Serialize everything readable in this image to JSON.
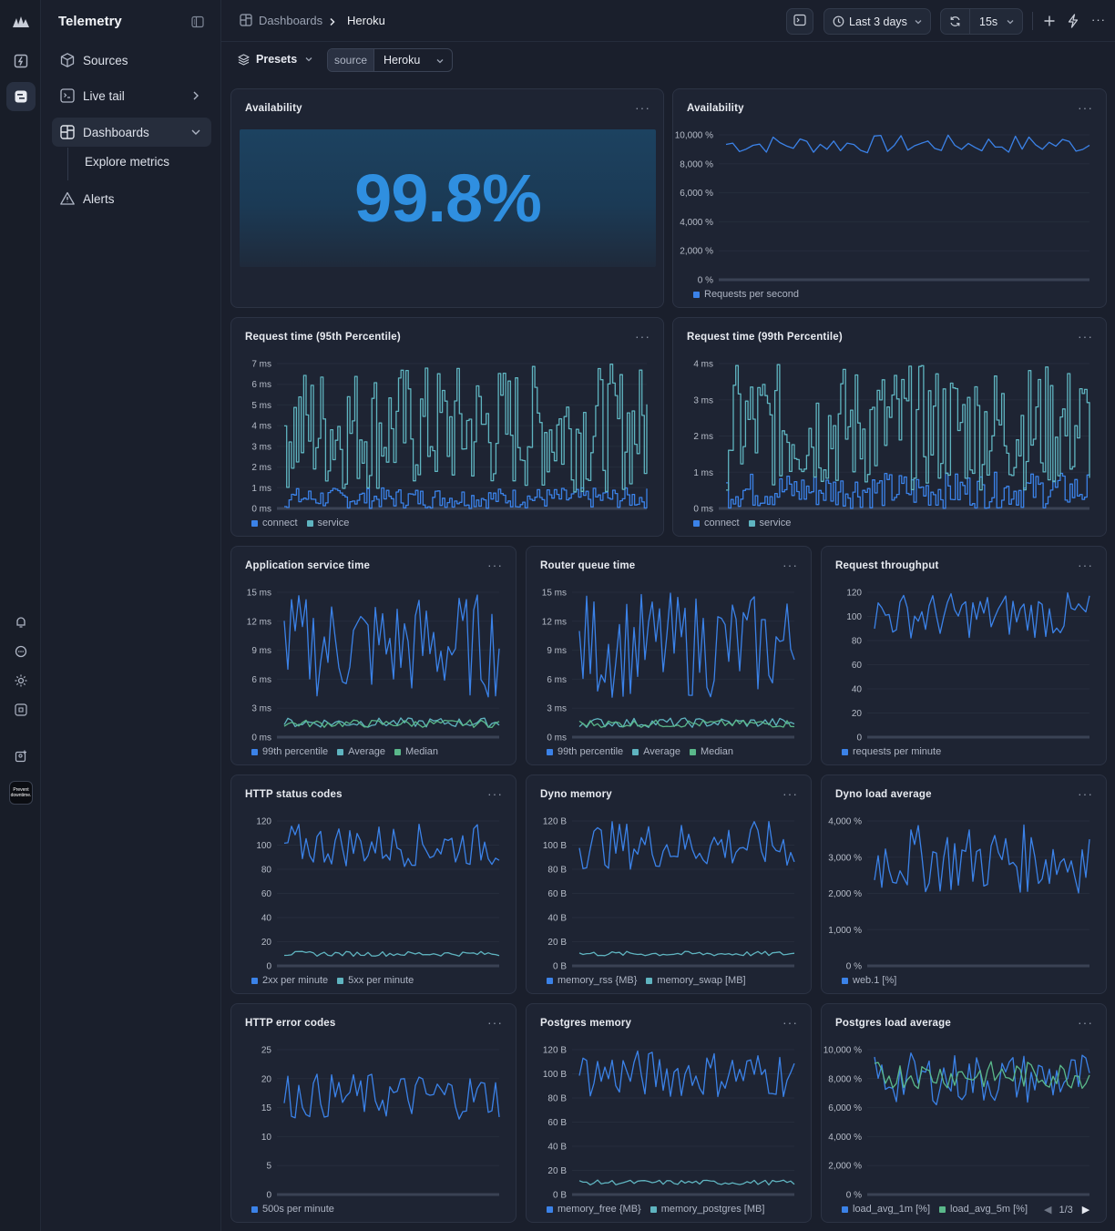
{
  "app": {
    "title": "Telemetry"
  },
  "sidebar": {
    "items": [
      {
        "label": "Sources"
      },
      {
        "label": "Live tail"
      },
      {
        "label": "Dashboards"
      },
      {
        "label": "Alerts"
      }
    ],
    "sub_items": [
      {
        "label": "Explore metrics"
      }
    ]
  },
  "rail": {
    "avatar_text": "Prevent downtime."
  },
  "breadcrumb": {
    "root": "Dashboards",
    "current": "Heroku"
  },
  "toolbar": {
    "time_range": "Last 3 days",
    "refresh_interval": "15s"
  },
  "filters": {
    "presets_label": "Presets",
    "key": "source",
    "value": "Heroku"
  },
  "colors": {
    "blue": "#3b82e8",
    "teal": "#5fb4c0",
    "green": "#5ab88a",
    "bg": "#1a1f2c"
  },
  "panels": [
    {
      "title": "Availability",
      "stat": "99.8%"
    },
    {
      "title": "Availability",
      "legend": [
        "Requests per second"
      ]
    },
    {
      "title": "Request time (95th Percentile)",
      "legend": [
        "connect",
        "service"
      ]
    },
    {
      "title": "Request time (99th Percentile)",
      "legend": [
        "connect",
        "service"
      ]
    },
    {
      "title": "Application service time",
      "legend": [
        "99th percentile",
        "Average",
        "Median"
      ]
    },
    {
      "title": "Router queue time",
      "legend": [
        "99th percentile",
        "Average",
        "Median"
      ]
    },
    {
      "title": "Request throughput",
      "legend": [
        "requests per minute"
      ]
    },
    {
      "title": "HTTP status codes",
      "legend": [
        "2xx per minute",
        "5xx per minute"
      ]
    },
    {
      "title": "Dyno memory",
      "legend": [
        "memory_rss {MB}",
        "memory_swap [MB]"
      ]
    },
    {
      "title": "Dyno load average",
      "legend": [
        "web.1 [%]"
      ]
    },
    {
      "title": "HTTP error codes",
      "legend": [
        "500s per minute"
      ]
    },
    {
      "title": "Postgres memory",
      "legend": [
        "memory_free {MB}",
        "memory_postgres [MB]"
      ]
    },
    {
      "title": "Postgres load average",
      "legend": [
        "load_avg_1m [%]",
        "load_avg_5m [%]"
      ],
      "pager": "1/3"
    }
  ],
  "chart_data": [
    {
      "type": "line",
      "title": "Availability",
      "ylabel": "",
      "yticks": [
        "0 %",
        "2,000 %",
        "4,000 %",
        "6,000 %",
        "8,000 %",
        "10,000 %"
      ],
      "ylim": [
        0,
        10000
      ],
      "series": [
        {
          "name": "Requests per second",
          "range": [
            8700,
            10000
          ]
        }
      ]
    },
    {
      "type": "line",
      "title": "Request time (95th Percentile)",
      "yticks": [
        "0 ms",
        "1 ms",
        "2 ms",
        "3 ms",
        "4 ms",
        "5 ms",
        "6 ms",
        "7 ms"
      ],
      "ylim": [
        0,
        7
      ],
      "series": [
        {
          "name": "connect",
          "range": [
            0,
            1
          ]
        },
        {
          "name": "service",
          "range": [
            0.8,
            7
          ]
        }
      ]
    },
    {
      "type": "line",
      "title": "Request time (99th Percentile)",
      "yticks": [
        "0 ms",
        "1 ms",
        "2 ms",
        "3 ms",
        "4 ms"
      ],
      "ylim": [
        0,
        4
      ],
      "series": [
        {
          "name": "connect",
          "range": [
            0,
            1
          ]
        },
        {
          "name": "service",
          "range": [
            0.5,
            4
          ]
        }
      ]
    },
    {
      "type": "line",
      "title": "Application service time",
      "yticks": [
        "0 ms",
        "3 ms",
        "6 ms",
        "9 ms",
        "12 ms",
        "15 ms"
      ],
      "ylim": [
        0,
        15
      ],
      "series": [
        {
          "name": "99th percentile",
          "range": [
            4,
            15
          ]
        },
        {
          "name": "Average",
          "range": [
            1,
            2
          ]
        },
        {
          "name": "Median",
          "range": [
            1,
            1.8
          ]
        }
      ]
    },
    {
      "type": "line",
      "title": "Router queue time",
      "yticks": [
        "0 ms",
        "3 ms",
        "6 ms",
        "9 ms",
        "12 ms",
        "15 ms"
      ],
      "ylim": [
        0,
        15
      ],
      "series": [
        {
          "name": "99th percentile",
          "range": [
            4,
            15
          ]
        },
        {
          "name": "Average",
          "range": [
            1,
            2
          ]
        },
        {
          "name": "Median",
          "range": [
            1,
            1.8
          ]
        }
      ]
    },
    {
      "type": "line",
      "title": "Request throughput",
      "yticks": [
        "0",
        "20",
        "40",
        "60",
        "80",
        "100",
        "120"
      ],
      "ylim": [
        0,
        120
      ],
      "series": [
        {
          "name": "requests per minute",
          "range": [
            82,
            120
          ]
        }
      ]
    },
    {
      "type": "line",
      "title": "HTTP status codes",
      "yticks": [
        "0",
        "20",
        "40",
        "60",
        "80",
        "100",
        "120"
      ],
      "ylim": [
        0,
        120
      ],
      "series": [
        {
          "name": "2xx per minute",
          "range": [
            82,
            118
          ]
        },
        {
          "name": "5xx per minute",
          "range": [
            8,
            12
          ]
        }
      ]
    },
    {
      "type": "line",
      "title": "Dyno memory",
      "yticks": [
        "0 B",
        "20 B",
        "40 B",
        "60 B",
        "80 B",
        "100 B",
        "120 B"
      ],
      "ylim": [
        0,
        120
      ],
      "series": [
        {
          "name": "memory_rss {MB}",
          "range": [
            80,
            120
          ]
        },
        {
          "name": "memory_swap [MB]",
          "range": [
            8,
            12
          ]
        }
      ]
    },
    {
      "type": "line",
      "title": "Dyno load average",
      "yticks": [
        "0 %",
        "1,000 %",
        "2,000 %",
        "3,000 %",
        "4,000 %"
      ],
      "ylim": [
        0,
        4000
      ],
      "series": [
        {
          "name": "web.1 [%]",
          "range": [
            2000,
            3900
          ]
        }
      ]
    },
    {
      "type": "line",
      "title": "HTTP error codes",
      "yticks": [
        "0",
        "5",
        "10",
        "15",
        "20",
        "25"
      ],
      "ylim": [
        0,
        25
      ],
      "series": [
        {
          "name": "500s per minute",
          "range": [
            13,
            21
          ]
        }
      ]
    },
    {
      "type": "line",
      "title": "Postgres memory",
      "yticks": [
        "0 B",
        "20 B",
        "40 B",
        "60 B",
        "80 B",
        "100 B",
        "120 B"
      ],
      "ylim": [
        0,
        120
      ],
      "series": [
        {
          "name": "memory_free {MB}",
          "range": [
            80,
            120
          ]
        },
        {
          "name": "memory_postgres [MB]",
          "range": [
            8,
            12
          ]
        }
      ]
    },
    {
      "type": "line",
      "title": "Postgres load average",
      "yticks": [
        "0 %",
        "2,000 %",
        "4,000 %",
        "6,000 %",
        "8,000 %",
        "10,000 %"
      ],
      "ylim": [
        0,
        10000
      ],
      "series": [
        {
          "name": "load_avg_1m [%]",
          "range": [
            6200,
            9800
          ]
        },
        {
          "name": "load_avg_5m [%]",
          "range": [
            7300,
            9200
          ]
        }
      ]
    }
  ]
}
